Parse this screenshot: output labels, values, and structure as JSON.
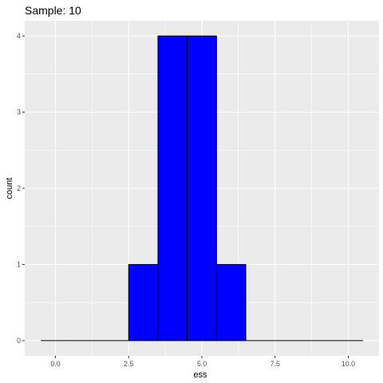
{
  "chart_data": {
    "type": "bar",
    "title": "Sample: 10",
    "xlabel": "ess",
    "ylabel": "count",
    "bin_edges": [
      -0.5,
      0.5,
      1.5,
      2.5,
      3.5,
      4.5,
      5.5,
      6.5,
      7.5,
      8.5,
      9.5,
      10.5
    ],
    "bin_centers": [
      0,
      1,
      2,
      3,
      4,
      5,
      6,
      7,
      8,
      9,
      10
    ],
    "values": [
      0,
      0,
      0,
      1,
      4,
      4,
      1,
      0,
      0,
      0,
      0
    ],
    "xlim": [
      -1.05,
      11.05
    ],
    "ylim": [
      -0.2,
      4.2
    ],
    "x_ticks": [
      0,
      2.5,
      5,
      7.5,
      10
    ],
    "x_tick_labels": [
      "0.0",
      "2.5",
      "5.0",
      "7.5",
      "10.0"
    ],
    "y_ticks": [
      0,
      1,
      2,
      3,
      4
    ],
    "y_tick_labels": [
      "0",
      "1",
      "2",
      "3",
      "4"
    ],
    "grid": true,
    "legend": "none",
    "colors": {
      "bar_fill": "#0000FF",
      "bar_outline": "#000000",
      "panel_background": "#EBEBEB",
      "grid_major": "#FFFFFF",
      "tick_label": "#4D4D4D"
    }
  }
}
